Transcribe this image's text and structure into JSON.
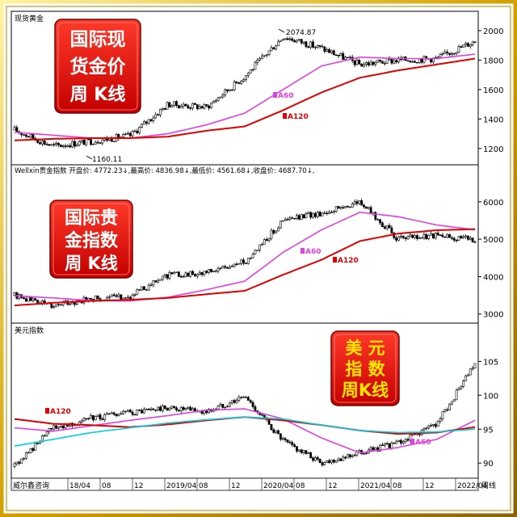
{
  "colors": {
    "candle": "#000000",
    "ma60": "#e040e0",
    "ma120": "#e00000",
    "ma_cyan": "#00d0e0",
    "badge_bg": "#e01010",
    "badge_text_light": "#ffffff",
    "badge_text_gold": "#ffe600",
    "frame_gold": "#d8a800"
  },
  "panel1": {
    "header": "现货黄金",
    "badge_lines": [
      "国际现",
      "货金价",
      "周  K线"
    ],
    "ma60_label": "A60",
    "ma120_label": "A120",
    "annotations": {
      "high": "2074.87",
      "low": "1160.11"
    }
  },
  "panel2": {
    "header": "Wellxin贵金指数  开盘价: 4772.23↓,最高价: 4836.98↓,最低价: 4561.68↓,收盘价: 4687.70↓,",
    "badge_lines": [
      "国际贵",
      "金指数",
      "周  K线"
    ],
    "ma60_label": "A60",
    "ma120_label": "A120"
  },
  "panel3": {
    "header": "美元指数",
    "badge_lines": [
      "美  元",
      "指  数",
      "周K线"
    ],
    "ma60_label": "A60",
    "ma120_label": "A120"
  },
  "footer": {
    "left_label": "威尔鑫咨询",
    "right_label": "周线"
  },
  "chart_data": [
    {
      "type": "candlestick",
      "title": "现货黄金",
      "subtitle": "国际现货金价周K线",
      "yticks": [
        1200,
        1400,
        1600,
        1800,
        2000
      ],
      "ylim": [
        1100,
        2120
      ],
      "x": [
        "2018/04",
        "2018/08",
        "2018/12",
        "2019/04",
        "2019/08",
        "2019/12",
        "2020/04",
        "2020/08",
        "2020/12",
        "2021/04",
        "2021/08",
        "2021/12",
        "2022/04"
      ],
      "series": [
        {
          "name": "收盘",
          "values": [
            1325,
            1215,
            1250,
            1285,
            1500,
            1480,
            1690,
            1960,
            1880,
            1770,
            1800,
            1810,
            1930
          ]
        },
        {
          "name": "A60",
          "values": [
            1310,
            1290,
            1270,
            1270,
            1300,
            1360,
            1440,
            1600,
            1760,
            1820,
            1810,
            1810,
            1840
          ]
        },
        {
          "name": "A120",
          "values": [
            1255,
            1265,
            1270,
            1270,
            1280,
            1320,
            1350,
            1460,
            1580,
            1680,
            1730,
            1770,
            1810
          ]
        }
      ],
      "annotations": [
        {
          "x": "2020/08",
          "y": 2074.87,
          "text": "2074.87"
        },
        {
          "x": "2018/08",
          "y": 1160.11,
          "text": "1160.11"
        }
      ]
    },
    {
      "type": "candlestick",
      "title": "Wellxin贵金指数",
      "subtitle": "国际贵金指数周K线",
      "yticks": [
        3000,
        4000,
        5000,
        6000
      ],
      "ylim": [
        2800,
        6600
      ],
      "ohlc_last": {
        "open": 4772.23,
        "high": 4836.98,
        "low": 4561.68,
        "close": 4687.7
      },
      "x": [
        "2018/04",
        "2018/08",
        "2018/12",
        "2019/04",
        "2019/08",
        "2019/12",
        "2020/04",
        "2020/08",
        "2020/12",
        "2021/04",
        "2021/08",
        "2021/12",
        "2022/04"
      ],
      "series": [
        {
          "name": "收盘",
          "values": [
            3500,
            3230,
            3400,
            3460,
            4050,
            4100,
            4400,
            5500,
            5700,
            6000,
            5000,
            5100,
            5000
          ]
        },
        {
          "name": "A60",
          "values": [
            3490,
            3430,
            3360,
            3350,
            3450,
            3650,
            3880,
            4650,
            5250,
            5720,
            5600,
            5380,
            5250
          ]
        },
        {
          "name": "A120",
          "values": [
            3230,
            3300,
            3350,
            3380,
            3430,
            3530,
            3620,
            4050,
            4450,
            4950,
            5150,
            5240,
            5270
          ]
        }
      ]
    },
    {
      "type": "candlestick",
      "title": "美元指数",
      "subtitle": "美元指数周K线",
      "yticks": [
        90,
        95,
        100,
        105
      ],
      "ylim": [
        88,
        108.5
      ],
      "x": [
        "2018/04",
        "2018/08",
        "2018/12",
        "2019/04",
        "2019/08",
        "2019/12",
        "2020/04",
        "2020/08",
        "2020/12",
        "2021/04",
        "2021/08",
        "2021/12",
        "2022/04"
      ],
      "series": [
        {
          "name": "收盘",
          "values": [
            89.5,
            95.2,
            96.6,
            97.4,
            98.1,
            97.5,
            99.8,
            93.2,
            90.0,
            91.5,
            92.9,
            95.8,
            104.5
          ]
        },
        {
          "name": "A60",
          "values": [
            95.2,
            94.7,
            95.5,
            96.3,
            97.0,
            97.8,
            98.0,
            96.5,
            93.7,
            91.5,
            92.3,
            93.5,
            96.3
          ]
        },
        {
          "name": "A120",
          "values": [
            96.5,
            95.8,
            95.6,
            95.3,
            95.7,
            96.3,
            96.8,
            96.3,
            95.6,
            94.8,
            94.3,
            94.5,
            95.3
          ]
        },
        {
          "name": "cyan",
          "values": [
            92.5,
            93.5,
            94.5,
            95.2,
            95.9,
            96.4,
            96.8,
            96.5,
            95.6,
            94.8,
            94.5,
            94.6,
            95.0
          ]
        }
      ]
    }
  ],
  "x_axis": {
    "labels": [
      "18/04",
      "08",
      "12",
      "2019/04",
      "08",
      "12",
      "2020/04",
      "08",
      "12",
      "2021/04",
      "08",
      "12",
      "2022/04"
    ]
  }
}
